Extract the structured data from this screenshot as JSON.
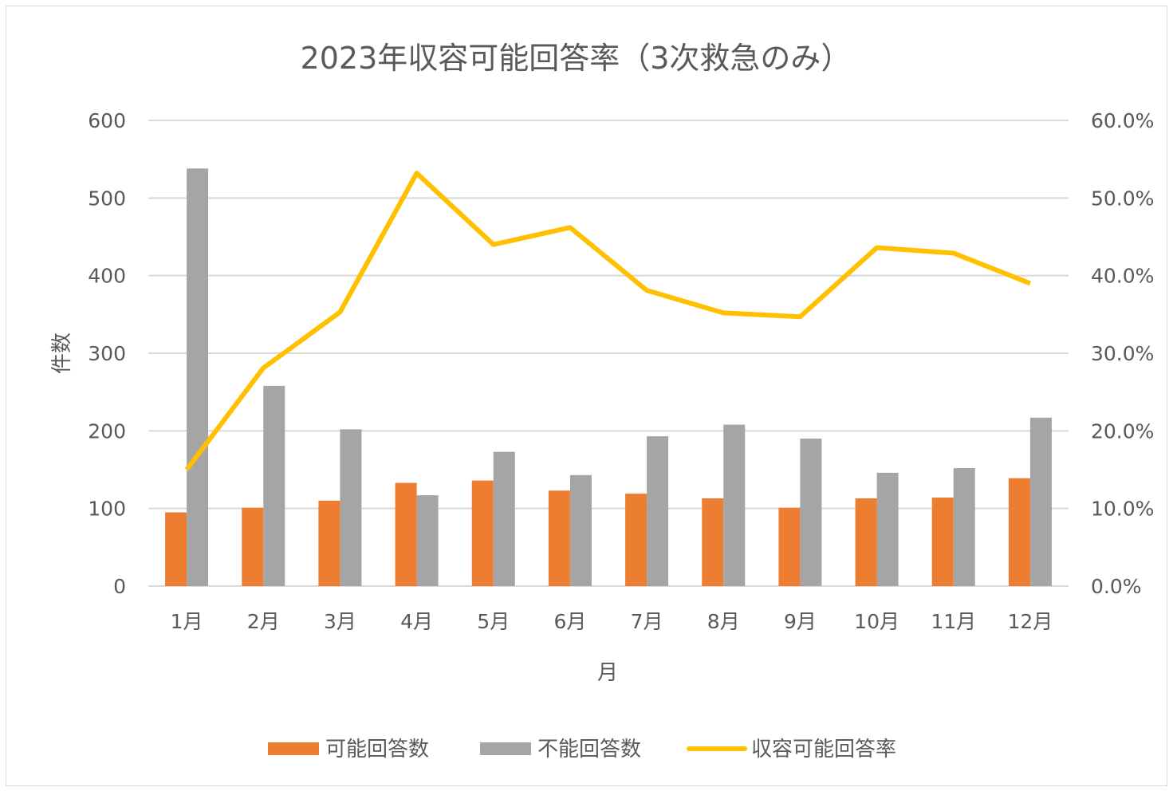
{
  "chart_data": {
    "type": "bar+line",
    "title": "2023年収容可能回答率（3次救急のみ）",
    "xlabel": "月",
    "ylabel": "件数",
    "y2label": "",
    "categories": [
      "1月",
      "2月",
      "3月",
      "4月",
      "5月",
      "6月",
      "7月",
      "8月",
      "9月",
      "10月",
      "11月",
      "12月"
    ],
    "ylim": [
      0,
      600
    ],
    "yticks": [
      0,
      100,
      200,
      300,
      400,
      500,
      600
    ],
    "y2lim": [
      0,
      60
    ],
    "y2ticks": [
      "0.0%",
      "10.0%",
      "20.0%",
      "30.0%",
      "40.0%",
      "50.0%",
      "60.0%"
    ],
    "grid": true,
    "legend_position": "bottom",
    "series": [
      {
        "name": "可能回答数",
        "type": "bar",
        "axis": "left",
        "color": "#ED7D31",
        "values": [
          95,
          101,
          110,
          133,
          136,
          123,
          119,
          113,
          101,
          113,
          114,
          139
        ]
      },
      {
        "name": "不能回答数",
        "type": "bar",
        "axis": "left",
        "color": "#A5A5A5",
        "values": [
          538,
          258,
          202,
          117,
          173,
          143,
          193,
          208,
          190,
          146,
          152,
          217
        ]
      },
      {
        "name": "収容可能回答率",
        "type": "line",
        "axis": "right",
        "color": "#FFC000",
        "values": [
          15.0,
          28.1,
          35.3,
          53.2,
          44.0,
          46.2,
          38.1,
          35.2,
          34.7,
          43.6,
          42.9,
          39.0
        ]
      }
    ]
  }
}
